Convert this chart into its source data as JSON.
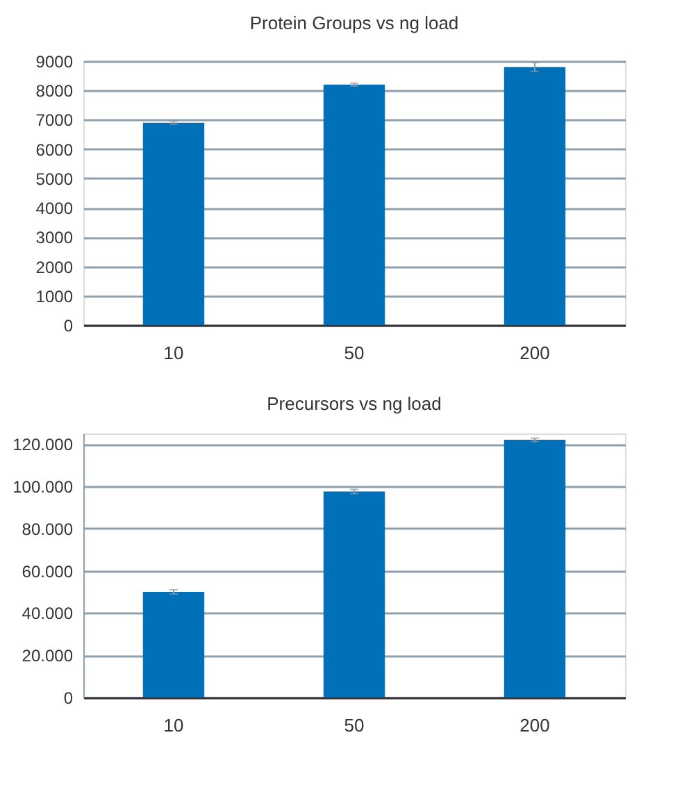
{
  "chart_data": [
    {
      "type": "bar",
      "title": "Protein Groups vs ng load",
      "categories": [
        "10",
        "50",
        "200"
      ],
      "values": [
        6900,
        8200,
        8800
      ],
      "errors": [
        50,
        50,
        150
      ],
      "color": "#0070b8",
      "ylim": [
        0,
        9000
      ],
      "yticks": [
        0,
        1000,
        2000,
        3000,
        4000,
        5000,
        6000,
        7000,
        8000,
        9000
      ],
      "grid": "y",
      "legend": false
    },
    {
      "type": "bar",
      "title": "Precursors vs ng load",
      "categories": [
        "10",
        "50",
        "200"
      ],
      "values": [
        50000,
        97500,
        122000
      ],
      "errors": [
        1000,
        1000,
        800
      ],
      "color": "#0070b8",
      "ylim": [
        0,
        125000
      ],
      "yticks": [
        0,
        {
          "value": 20000,
          "label": "20.000"
        },
        {
          "value": 40000,
          "label": "40.000"
        },
        {
          "value": 60000,
          "label": "60.000"
        },
        {
          "value": 80000,
          "label": "80.000"
        },
        {
          "value": 100000,
          "label": "100.000"
        },
        {
          "value": 120000,
          "label": "120.000"
        }
      ],
      "grid": "y",
      "legend": false
    }
  ]
}
